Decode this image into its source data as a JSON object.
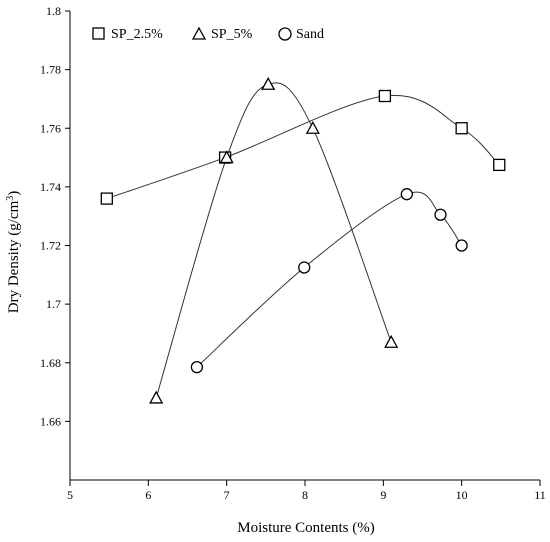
{
  "chart_data": {
    "type": "scatter",
    "title": "",
    "xlabel": "Moisture Contents (%)",
    "ylabel_main": "Dry Density (g/cm",
    "ylabel_sup": "3",
    "ylabel_end": ")",
    "xlim": [
      5,
      11
    ],
    "ylim": [
      1.64,
      1.8
    ],
    "x_ticks": [
      5,
      6,
      7,
      8,
      9,
      10,
      11
    ],
    "x_tick_labels": [
      "5",
      "6",
      "7",
      "8",
      "9",
      "10",
      "11"
    ],
    "y_ticks": [
      1.66,
      1.68,
      1.7,
      1.72,
      1.74,
      1.76,
      1.78,
      1.8
    ],
    "y_tick_labels": [
      "1.66",
      "1.68",
      "1.7",
      "1.72",
      "1.74",
      "1.76",
      "1.78",
      "1.8"
    ],
    "grid": false,
    "legend_placement": "top-left",
    "series": [
      {
        "name": "SP_2.5%",
        "marker": "square",
        "x": [
          5.47,
          6.98,
          9.02,
          10.0,
          10.48
        ],
        "y": [
          1.736,
          1.75,
          1.771,
          1.76,
          1.7475
        ]
      },
      {
        "name": "SP_5%",
        "marker": "triangle",
        "x": [
          6.1,
          7.0,
          7.53,
          8.1,
          9.1
        ],
        "y": [
          1.668,
          1.75,
          1.775,
          1.76,
          1.687
        ]
      },
      {
        "name": "Sand",
        "marker": "circle",
        "x": [
          6.62,
          7.99,
          9.3,
          9.73,
          10.0
        ],
        "y": [
          1.6785,
          1.7125,
          1.7375,
          1.7305,
          1.72
        ]
      }
    ]
  }
}
